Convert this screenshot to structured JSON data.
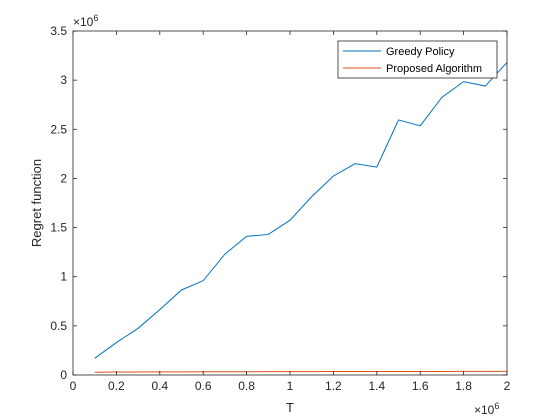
{
  "chart_data": {
    "type": "line",
    "title": "",
    "xlabel": "T",
    "ylabel": "Regret function",
    "x_exponent_base": "×10",
    "x_exponent_power": "6",
    "y_exponent_base": "×10",
    "y_exponent_power": "6",
    "xlim": [
      0,
      2000000
    ],
    "ylim": [
      0,
      3500000
    ],
    "xticks": [
      0,
      200000,
      400000,
      600000,
      800000,
      1000000,
      1200000,
      1400000,
      1600000,
      1800000,
      2000000
    ],
    "xtick_labels": [
      "0",
      "0.2",
      "0.4",
      "0.6",
      "0.8",
      "1",
      "1.2",
      "1.4",
      "1.6",
      "1.8",
      "2"
    ],
    "yticks": [
      0,
      500000,
      1000000,
      1500000,
      2000000,
      2500000,
      3000000,
      3500000
    ],
    "ytick_labels": [
      "0",
      "0.5",
      "1",
      "1.5",
      "2",
      "2.5",
      "3",
      "3.5"
    ],
    "grid": false,
    "legend_position": "top-right",
    "x": [
      100000,
      200000,
      300000,
      400000,
      500000,
      600000,
      700000,
      800000,
      900000,
      1000000,
      1100000,
      1200000,
      1300000,
      1400000,
      1500000,
      1600000,
      1700000,
      1800000,
      1900000,
      2000000
    ],
    "series": [
      {
        "name": "Greedy Policy",
        "color": "#0072BD",
        "values": [
          170000,
          330000,
          475000,
          665000,
          865000,
          960000,
          1230000,
          1410000,
          1430000,
          1575000,
          1815000,
          2025000,
          2150000,
          2115000,
          2595000,
          2535000,
          2825000,
          2985000,
          2940000,
          3180000
        ]
      },
      {
        "name": "Proposed Algorithm",
        "color": "#D95319",
        "values": [
          28000,
          30000,
          31000,
          32000,
          32000,
          33000,
          33000,
          33500,
          34000,
          34000,
          34500,
          35000,
          35000,
          35500,
          35500,
          36000,
          36000,
          36500,
          36500,
          37000
        ]
      }
    ]
  }
}
